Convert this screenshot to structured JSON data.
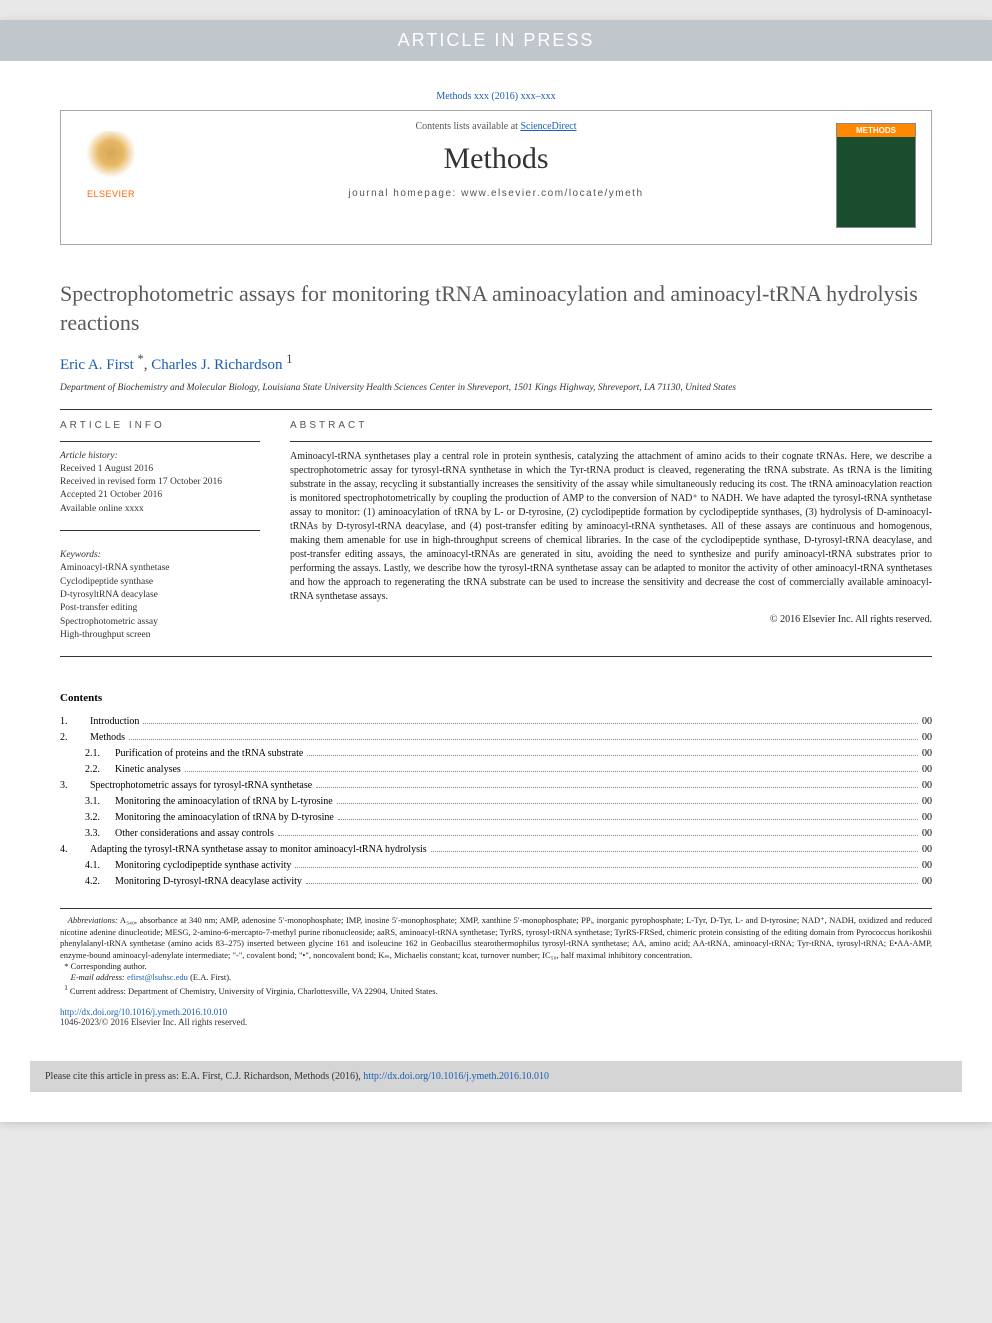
{
  "banner": "ARTICLE IN PRESS",
  "citation_top": "Methods xxx (2016) xxx–xxx",
  "header": {
    "contents_line_prefix": "Contents lists available at ",
    "contents_line_link": "ScienceDirect",
    "journal_name": "Methods",
    "homepage_prefix": "journal homepage: ",
    "homepage_url": "www.elsevier.com/locate/ymeth",
    "publisher_name": "ELSEVIER",
    "cover_label": "METHODS"
  },
  "title": "Spectrophotometric assays for monitoring tRNA aminoacylation and aminoacyl-tRNA hydrolysis reactions",
  "authors_html": "Eric A. First *, Charles J. Richardson ¹",
  "authors": [
    {
      "name": "Eric A. First",
      "marks": "*"
    },
    {
      "name": "Charles J. Richardson",
      "marks": "1"
    }
  ],
  "affiliation": "Department of Biochemistry and Molecular Biology, Louisiana State University Health Sciences Center in Shreveport, 1501 Kings Highway, Shreveport, LA 71130, United States",
  "info": {
    "heading": "ARTICLE INFO",
    "history_label": "Article history:",
    "history": [
      "Received 1 August 2016",
      "Received in revised form 17 October 2016",
      "Accepted 21 October 2016",
      "Available online xxxx"
    ],
    "keywords_label": "Keywords:",
    "keywords": [
      "Aminoacyl-tRNA synthetase",
      "Cyclodipeptide synthase",
      "D-tyrosyltRNA deacylase",
      "Post-transfer editing",
      "Spectrophotometric assay",
      "High-throughput screen"
    ]
  },
  "abstract": {
    "heading": "ABSTRACT",
    "text": "Aminoacyl-tRNA synthetases play a central role in protein synthesis, catalyzing the attachment of amino acids to their cognate tRNAs. Here, we describe a spectrophotometric assay for tyrosyl-tRNA synthetase in which the Tyr-tRNA product is cleaved, regenerating the tRNA substrate. As tRNA is the limiting substrate in the assay, recycling it substantially increases the sensitivity of the assay while simultaneously reducing its cost. The tRNA aminoacylation reaction is monitored spectrophotometrically by coupling the production of AMP to the conversion of NAD⁺ to NADH. We have adapted the tyrosyl-tRNA synthetase assay to monitor: (1) aminoacylation of tRNA by L- or D-tyrosine, (2) cyclodipeptide formation by cyclodipeptide synthases, (3) hydrolysis of D-aminoacyl-tRNAs by D-tyrosyl-tRNA deacylase, and (4) post-transfer editing by aminoacyl-tRNA synthetases. All of these assays are continuous and homogenous, making them amenable for use in high-throughput screens of chemical libraries. In the case of the cyclodipeptide synthase, D-tyrosyl-tRNA deacylase, and post-transfer editing assays, the aminoacyl-tRNAs are generated in situ, avoiding the need to synthesize and purify aminoacyl-tRNA substrates prior to performing the assays. Lastly, we describe how the tyrosyl-tRNA synthetase assay can be adapted to monitor the activity of other aminoacyl-tRNA synthetases and how the approach to regenerating the tRNA substrate can be used to increase the sensitivity and decrease the cost of commercially available aminoacyl-tRNA synthetase assays.",
    "copyright": "© 2016 Elsevier Inc. All rights reserved."
  },
  "contents": {
    "heading": "Contents",
    "items": [
      {
        "num": "1.",
        "title": "Introduction",
        "page": "00",
        "level": 0
      },
      {
        "num": "2.",
        "title": "Methods",
        "page": "00",
        "level": 0
      },
      {
        "num": "2.1.",
        "title": "Purification of proteins and the tRNA substrate",
        "page": "00",
        "level": 1
      },
      {
        "num": "2.2.",
        "title": "Kinetic analyses",
        "page": "00",
        "level": 1
      },
      {
        "num": "3.",
        "title": "Spectrophotometric assays for tyrosyl-tRNA synthetase",
        "page": "00",
        "level": 0
      },
      {
        "num": "3.1.",
        "title": "Monitoring the aminoacylation of tRNA by L-tyrosine",
        "page": "00",
        "level": 1
      },
      {
        "num": "3.2.",
        "title": "Monitoring the aminoacylation of tRNA by D-tyrosine",
        "page": "00",
        "level": 1
      },
      {
        "num": "3.3.",
        "title": "Other considerations and assay controls",
        "page": "00",
        "level": 1
      },
      {
        "num": "4.",
        "title": "Adapting the tyrosyl-tRNA synthetase assay to monitor aminoacyl-tRNA hydrolysis",
        "page": "00",
        "level": 0
      },
      {
        "num": "4.1.",
        "title": "Monitoring cyclodipeptide synthase activity",
        "page": "00",
        "level": 1
      },
      {
        "num": "4.2.",
        "title": "Monitoring D-tyrosyl-tRNA deacylase activity",
        "page": "00",
        "level": 1
      }
    ]
  },
  "footnotes": {
    "abbrev_label": "Abbreviations:",
    "abbrev": "A₃₄₀, absorbance at 340 nm; AMP, adenosine 5′-monophosphate; IMP, inosine 5′-monophosphate; XMP, xanthine 5′-monophosphate; PPᵢ, inorganic pyrophosphate; L-Tyr, D-Tyr, L- and D-tyrosine; NAD⁺, NADH, oxidized and reduced nicotine adenine dinucleotide; MESG, 2-amino-6-mercapto-7-methyl purine ribonucleoside; aaRS, aminoacyl-tRNA synthetase; TyrRS, tyrosyl-tRNA synthetase; TyrRS-FRSed, chimeric protein consisting of the editing domain from Pyrococcus horikoshii phenylalanyl-tRNA synthetase (amino acids 83–275) inserted between glycine 161 and isoleucine 162 in Geobacillus stearothermophilus tyrosyl-tRNA synthetase; AA, amino acid; AA-tRNA, aminoacyl-tRNA; Tyr-tRNA, tyrosyl-tRNA; E•AA-AMP, enzyme-bound aminoacyl-adenylate intermediate; \"-\", covalent bond; \"•\", noncovalent bond; Kₘ, Michaelis constant; kcat, turnover number; IC₅₀, half maximal inhibitory concentration.",
    "corr_mark": "*",
    "corr_text": "Corresponding author.",
    "email_label": "E-mail address:",
    "email": "efirst@lsuhsc.edu",
    "email_suffix": "(E.A. First).",
    "addr_mark": "1",
    "addr_text": "Current address: Department of Chemistry, University of Virginia, Charlottesville, VA 22904, United States."
  },
  "doi": {
    "url": "http://dx.doi.org/10.1016/j.ymeth.2016.10.010",
    "issn_line": "1046-2023/© 2016 Elsevier Inc. All rights reserved."
  },
  "cite_box": {
    "prefix": "Please cite this article in press as: E.A. First, C.J. Richardson, Methods (2016), ",
    "link": "http://dx.doi.org/10.1016/j.ymeth.2016.10.010"
  },
  "colors": {
    "banner_bg": "#bfc6cc",
    "link": "#1a5fb4",
    "elsevier_orange": "#ff6600",
    "cover_bg": "#1a4d2e",
    "cover_label_bg": "#ff8800"
  }
}
